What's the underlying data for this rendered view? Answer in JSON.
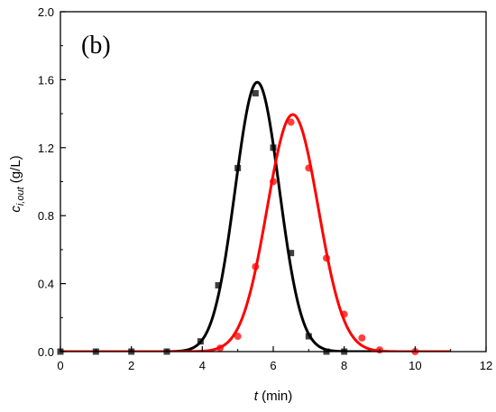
{
  "chart_data": {
    "type": "scatter",
    "panel_label": "(b)",
    "xlabel": {
      "symbol": "t",
      "rest": " (min)"
    },
    "ylabel": {
      "main": "c",
      "sub": "i,out",
      "rest": " (g/L)"
    },
    "xlim": [
      0,
      12
    ],
    "ylim": [
      0,
      2.0
    ],
    "xticks": [
      0,
      2,
      4,
      6,
      8,
      10,
      12
    ],
    "xtick_labels": [
      "0",
      "2",
      "4",
      "6",
      "8",
      "10",
      "12"
    ],
    "yticks": [
      0,
      0.4,
      0.8,
      1.2,
      1.6,
      2.0
    ],
    "ytick_labels": [
      "0.0",
      "0.4",
      "0.8",
      "1.2",
      "1.6",
      "2.0"
    ],
    "grid": false,
    "series": [
      {
        "color": "#000000",
        "marker": "square",
        "points": [
          [
            0,
            0.0
          ],
          [
            1,
            0.0
          ],
          [
            2,
            0.0
          ],
          [
            3,
            0.0
          ],
          [
            3.95,
            0.06
          ],
          [
            4.45,
            0.39
          ],
          [
            5.0,
            1.08
          ],
          [
            5.5,
            1.52
          ],
          [
            6.0,
            1.2
          ],
          [
            6.5,
            0.58
          ],
          [
            7.0,
            0.09
          ],
          [
            7.5,
            0.0
          ],
          [
            8.0,
            0.0
          ]
        ],
        "fit": {
          "shape": "gaussian",
          "peak_x": 5.55,
          "peak_y": 1.585,
          "sigma": 0.62,
          "x_range": [
            0,
            9.5
          ]
        }
      },
      {
        "color": "#ff0000",
        "marker": "circle",
        "points": [
          [
            4.5,
            0.02
          ],
          [
            5.0,
            0.09
          ],
          [
            5.5,
            0.5
          ],
          [
            6.0,
            1.0
          ],
          [
            6.5,
            1.35
          ],
          [
            7.0,
            1.08
          ],
          [
            7.5,
            0.55
          ],
          [
            8.0,
            0.22
          ],
          [
            8.5,
            0.08
          ],
          [
            9.0,
            0.01
          ],
          [
            10.0,
            0.0
          ]
        ],
        "fit": {
          "shape": "gaussian",
          "peak_x": 6.55,
          "peak_y": 1.395,
          "sigma": 0.72,
          "x_range": [
            0,
            11
          ]
        }
      }
    ]
  }
}
